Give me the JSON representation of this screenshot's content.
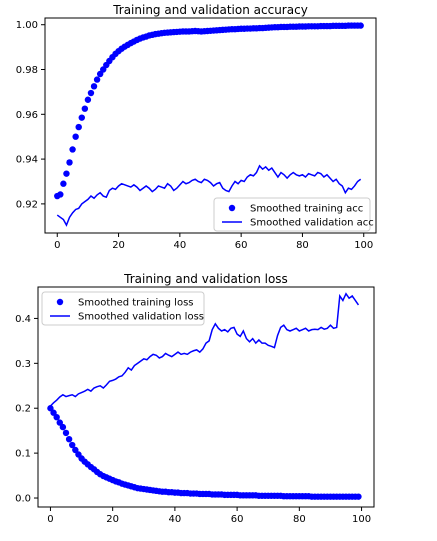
{
  "colors": {
    "series": "#0000ff",
    "frame": "#000000",
    "legend_border": "#cccccc"
  },
  "chart_data": [
    {
      "type": "scatter+line",
      "title": "Training and validation accuracy",
      "xlabel": "",
      "ylabel": "",
      "xlim": [
        -4,
        104
      ],
      "ylim": [
        0.907,
        1.003
      ],
      "xticks": [
        0,
        20,
        40,
        60,
        80,
        100
      ],
      "xtick_labels": [
        "0",
        "20",
        "40",
        "60",
        "80",
        "100"
      ],
      "yticks": [
        0.92,
        0.94,
        0.96,
        0.98,
        1.0
      ],
      "ytick_labels": [
        "0.92",
        "0.94",
        "0.96",
        "0.98",
        "1.00"
      ],
      "legend_position": "bottom-right",
      "legend_entries": [
        "Smoothed training acc",
        "Smoothed validation acc"
      ],
      "series": [
        {
          "name": "Smoothed training acc",
          "style": "markers",
          "x": [
            0,
            1,
            2,
            3,
            4,
            5,
            6,
            7,
            8,
            9,
            10,
            11,
            12,
            13,
            14,
            15,
            16,
            17,
            18,
            19,
            20,
            21,
            22,
            23,
            24,
            25,
            26,
            27,
            28,
            29,
            30,
            31,
            32,
            33,
            34,
            35,
            36,
            37,
            38,
            39,
            40,
            41,
            42,
            43,
            44,
            45,
            46,
            47,
            48,
            49,
            50,
            51,
            52,
            53,
            54,
            55,
            56,
            57,
            58,
            59,
            60,
            61,
            62,
            63,
            64,
            65,
            66,
            67,
            68,
            69,
            70,
            71,
            72,
            73,
            74,
            75,
            76,
            77,
            78,
            79,
            80,
            81,
            82,
            83,
            84,
            85,
            86,
            87,
            88,
            89,
            90,
            91,
            92,
            93,
            94,
            95,
            96,
            97,
            98,
            99
          ],
          "values": [
            0.9235,
            0.9242,
            0.929,
            0.9335,
            0.9385,
            0.9443,
            0.95,
            0.9543,
            0.9585,
            0.9625,
            0.9665,
            0.9695,
            0.9725,
            0.9755,
            0.978,
            0.98,
            0.982,
            0.9838,
            0.9855,
            0.987,
            0.9882,
            0.9893,
            0.9902,
            0.991,
            0.9918,
            0.9925,
            0.9932,
            0.9938,
            0.9943,
            0.9947,
            0.9952,
            0.9955,
            0.9958,
            0.996,
            0.9962,
            0.9964,
            0.9965,
            0.9966,
            0.9967,
            0.9968,
            0.9969,
            0.997,
            0.997,
            0.997,
            0.9971,
            0.9972,
            0.9971,
            0.997,
            0.9971,
            0.9972,
            0.9973,
            0.9974,
            0.9975,
            0.9976,
            0.9977,
            0.9978,
            0.9979,
            0.998,
            0.998,
            0.9981,
            0.9982,
            0.9982,
            0.9983,
            0.9983,
            0.9984,
            0.9984,
            0.9985,
            0.9985,
            0.9986,
            0.9987,
            0.9988,
            0.9989,
            0.9989,
            0.999,
            0.999,
            0.999,
            0.9991,
            0.9991,
            0.9991,
            0.9992,
            0.9992,
            0.9992,
            0.9993,
            0.9993,
            0.9993,
            0.9993,
            0.9994,
            0.9994,
            0.9994,
            0.9994,
            0.9995,
            0.9995,
            0.9995,
            0.9995,
            0.9995,
            0.9996,
            0.9996,
            0.9996,
            0.9996,
            0.9996
          ]
        },
        {
          "name": "Smoothed validation acc",
          "style": "line",
          "x": [
            0,
            1,
            2,
            3,
            4,
            5,
            6,
            7,
            8,
            9,
            10,
            11,
            12,
            13,
            14,
            15,
            16,
            17,
            18,
            19,
            20,
            21,
            22,
            23,
            24,
            25,
            26,
            27,
            28,
            29,
            30,
            31,
            32,
            33,
            34,
            35,
            36,
            37,
            38,
            39,
            40,
            41,
            42,
            43,
            44,
            45,
            46,
            47,
            48,
            49,
            50,
            51,
            52,
            53,
            54,
            55,
            56,
            57,
            58,
            59,
            60,
            61,
            62,
            63,
            64,
            65,
            66,
            67,
            68,
            69,
            70,
            71,
            72,
            73,
            74,
            75,
            76,
            77,
            78,
            79,
            80,
            81,
            82,
            83,
            84,
            85,
            86,
            87,
            88,
            89,
            90,
            91,
            92,
            93,
            94,
            95,
            96,
            97,
            98,
            99
          ],
          "values": [
            0.915,
            0.914,
            0.913,
            0.9105,
            0.914,
            0.916,
            0.9175,
            0.918,
            0.92,
            0.921,
            0.922,
            0.9235,
            0.9225,
            0.924,
            0.925,
            0.9235,
            0.923,
            0.926,
            0.927,
            0.9265,
            0.928,
            0.929,
            0.9285,
            0.928,
            0.9275,
            0.9285,
            0.9275,
            0.926,
            0.927,
            0.928,
            0.927,
            0.9255,
            0.9265,
            0.928,
            0.9275,
            0.927,
            0.929,
            0.928,
            0.926,
            0.927,
            0.9285,
            0.93,
            0.929,
            0.9295,
            0.9305,
            0.931,
            0.93,
            0.9295,
            0.931,
            0.9305,
            0.9295,
            0.928,
            0.929,
            0.9295,
            0.927,
            0.926,
            0.9255,
            0.928,
            0.93,
            0.929,
            0.9305,
            0.93,
            0.932,
            0.933,
            0.9325,
            0.934,
            0.937,
            0.9355,
            0.9365,
            0.935,
            0.936,
            0.934,
            0.932,
            0.934,
            0.933,
            0.9315,
            0.933,
            0.934,
            0.933,
            0.9325,
            0.933,
            0.932,
            0.9335,
            0.933,
            0.9325,
            0.934,
            0.9335,
            0.932,
            0.933,
            0.9315,
            0.93,
            0.931,
            0.929,
            0.928,
            0.925,
            0.927,
            0.9265,
            0.928,
            0.93,
            0.931
          ]
        }
      ]
    },
    {
      "type": "scatter+line",
      "title": "Training and validation loss",
      "xlabel": "",
      "ylabel": "",
      "xlim": [
        -4,
        104
      ],
      "ylim": [
        -0.02,
        0.47
      ],
      "xticks": [
        0,
        20,
        40,
        60,
        80,
        100
      ],
      "xtick_labels": [
        "0",
        "20",
        "40",
        "60",
        "80",
        "100"
      ],
      "yticks": [
        0.0,
        0.1,
        0.2,
        0.3,
        0.4
      ],
      "ytick_labels": [
        "0.0",
        "0.1",
        "0.2",
        "0.3",
        "0.4"
      ],
      "legend_position": "top-left",
      "legend_entries": [
        "Smoothed training loss",
        "Smoothed validation loss"
      ],
      "series": [
        {
          "name": "Smoothed training loss",
          "style": "markers",
          "x": [
            0,
            1,
            2,
            3,
            4,
            5,
            6,
            7,
            8,
            9,
            10,
            11,
            12,
            13,
            14,
            15,
            16,
            17,
            18,
            19,
            20,
            21,
            22,
            23,
            24,
            25,
            26,
            27,
            28,
            29,
            30,
            31,
            32,
            33,
            34,
            35,
            36,
            37,
            38,
            39,
            40,
            41,
            42,
            43,
            44,
            45,
            46,
            47,
            48,
            49,
            50,
            51,
            52,
            53,
            54,
            55,
            56,
            57,
            58,
            59,
            60,
            61,
            62,
            63,
            64,
            65,
            66,
            67,
            68,
            69,
            70,
            71,
            72,
            73,
            74,
            75,
            76,
            77,
            78,
            79,
            80,
            81,
            82,
            83,
            84,
            85,
            86,
            87,
            88,
            89,
            90,
            91,
            92,
            93,
            94,
            95,
            96,
            97,
            98,
            99
          ],
          "values": [
            0.2,
            0.19,
            0.18,
            0.168,
            0.158,
            0.145,
            0.131,
            0.118,
            0.107,
            0.097,
            0.088,
            0.081,
            0.075,
            0.069,
            0.064,
            0.058,
            0.053,
            0.049,
            0.046,
            0.043,
            0.04,
            0.037,
            0.035,
            0.032,
            0.03,
            0.028,
            0.026,
            0.024,
            0.022,
            0.021,
            0.02,
            0.019,
            0.018,
            0.017,
            0.016,
            0.015,
            0.014,
            0.014,
            0.013,
            0.013,
            0.012,
            0.012,
            0.011,
            0.011,
            0.011,
            0.01,
            0.01,
            0.01,
            0.009,
            0.009,
            0.009,
            0.009,
            0.008,
            0.008,
            0.008,
            0.008,
            0.007,
            0.007,
            0.007,
            0.007,
            0.007,
            0.006,
            0.006,
            0.006,
            0.006,
            0.006,
            0.006,
            0.005,
            0.005,
            0.005,
            0.005,
            0.005,
            0.005,
            0.005,
            0.005,
            0.004,
            0.004,
            0.004,
            0.004,
            0.004,
            0.004,
            0.004,
            0.004,
            0.004,
            0.003,
            0.003,
            0.003,
            0.003,
            0.003,
            0.003,
            0.003,
            0.003,
            0.003,
            0.003,
            0.003,
            0.003,
            0.003,
            0.003,
            0.003,
            0.003
          ]
        },
        {
          "name": "Smoothed validation loss",
          "style": "line",
          "x": [
            0,
            1,
            2,
            3,
            4,
            5,
            6,
            7,
            8,
            9,
            10,
            11,
            12,
            13,
            14,
            15,
            16,
            17,
            18,
            19,
            20,
            21,
            22,
            23,
            24,
            25,
            26,
            27,
            28,
            29,
            30,
            31,
            32,
            33,
            34,
            35,
            36,
            37,
            38,
            39,
            40,
            41,
            42,
            43,
            44,
            45,
            46,
            47,
            48,
            49,
            50,
            51,
            52,
            53,
            54,
            55,
            56,
            57,
            58,
            59,
            60,
            61,
            62,
            63,
            64,
            65,
            66,
            67,
            68,
            69,
            70,
            71,
            72,
            73,
            74,
            75,
            76,
            77,
            78,
            79,
            80,
            81,
            82,
            83,
            84,
            85,
            86,
            87,
            88,
            89,
            90,
            91,
            92,
            93,
            94,
            95,
            96,
            97,
            98,
            99
          ],
          "values": [
            0.205,
            0.212,
            0.218,
            0.225,
            0.23,
            0.226,
            0.228,
            0.23,
            0.226,
            0.232,
            0.235,
            0.238,
            0.242,
            0.238,
            0.245,
            0.248,
            0.25,
            0.245,
            0.252,
            0.26,
            0.262,
            0.265,
            0.27,
            0.272,
            0.28,
            0.29,
            0.285,
            0.295,
            0.3,
            0.305,
            0.31,
            0.308,
            0.315,
            0.32,
            0.318,
            0.312,
            0.315,
            0.322,
            0.318,
            0.315,
            0.32,
            0.325,
            0.32,
            0.322,
            0.32,
            0.325,
            0.328,
            0.33,
            0.325,
            0.332,
            0.345,
            0.35,
            0.375,
            0.388,
            0.378,
            0.372,
            0.375,
            0.37,
            0.378,
            0.38,
            0.365,
            0.36,
            0.372,
            0.355,
            0.348,
            0.355,
            0.345,
            0.352,
            0.345,
            0.345,
            0.34,
            0.338,
            0.335,
            0.362,
            0.38,
            0.385,
            0.375,
            0.372,
            0.375,
            0.378,
            0.372,
            0.375,
            0.378,
            0.372,
            0.375,
            0.376,
            0.375,
            0.38,
            0.376,
            0.378,
            0.385,
            0.378,
            0.38,
            0.45,
            0.44,
            0.455,
            0.445,
            0.45,
            0.44,
            0.43
          ]
        }
      ]
    }
  ]
}
